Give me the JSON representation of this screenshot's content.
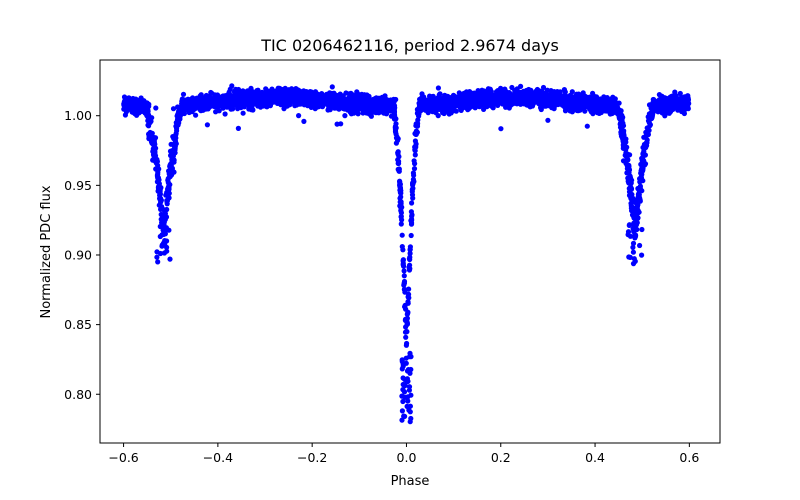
{
  "chart_data": {
    "type": "scatter",
    "title": "TIC 0206462116, period 2.9674 days",
    "xlabel": "Phase",
    "ylabel": "Normalized PDC flux",
    "xlim": [
      -0.65,
      0.665
    ],
    "ylim": [
      0.765,
      1.04
    ],
    "xticks": [
      -0.6,
      -0.4,
      -0.2,
      0.0,
      0.2,
      0.4,
      0.6
    ],
    "xtick_labels": [
      "−0.6",
      "−0.4",
      "−0.2",
      "0.0",
      "0.2",
      "0.4",
      "0.6"
    ],
    "yticks": [
      0.8,
      0.85,
      0.9,
      0.95,
      1.0
    ],
    "ytick_labels": [
      "0.80",
      "0.85",
      "0.90",
      "0.95",
      "1.00"
    ],
    "grid": false,
    "legend": "none",
    "marker_color": "#0000ff",
    "phase_range": [
      -0.6,
      0.6
    ],
    "baseline_flux": 1.008,
    "primary_eclipse": {
      "phase": 0.0,
      "min_flux": 0.78,
      "typical_depth_flux": 0.835
    },
    "secondary_eclipses": [
      {
        "phase": -0.515,
        "min_flux": 0.892,
        "typical_depth_flux": 0.92
      },
      {
        "phase": 0.485,
        "min_flux": 0.892,
        "typical_depth_flux": 0.92
      }
    ],
    "series": [
      {
        "x": [
          -0.6,
          -0.58,
          -0.56,
          -0.54,
          -0.53,
          -0.525,
          -0.52,
          -0.515,
          -0.51,
          -0.505,
          -0.5,
          -0.495,
          -0.49,
          -0.48,
          -0.46,
          -0.4,
          -0.3,
          -0.2,
          -0.1,
          -0.05,
          -0.03,
          -0.02,
          -0.015,
          -0.01,
          -0.005,
          0.0,
          0.005,
          0.01,
          0.015,
          0.02,
          0.03,
          0.05,
          0.1,
          0.2,
          0.3,
          0.4,
          0.44,
          0.46,
          0.47,
          0.475,
          0.48,
          0.485,
          0.49,
          0.495,
          0.5,
          0.505,
          0.51,
          0.52,
          0.54,
          0.56,
          0.58,
          0.6
        ],
        "y": [
          1.008,
          1.008,
          1.007,
          0.99,
          0.965,
          0.94,
          0.925,
          0.92,
          0.925,
          0.945,
          0.97,
          0.99,
          1.003,
          1.006,
          1.007,
          1.009,
          1.012,
          1.014,
          1.01,
          1.006,
          0.98,
          0.93,
          0.88,
          0.845,
          0.835,
          0.84,
          0.86,
          0.9,
          0.95,
          0.99,
          1.004,
          1.008,
          1.01,
          1.015,
          1.012,
          1.008,
          1.006,
          1.004,
          0.99,
          0.965,
          0.935,
          0.92,
          0.93,
          0.955,
          0.985,
          1.002,
          1.006,
          1.007,
          1.008,
          1.008,
          1.008,
          1.008
        ]
      }
    ]
  }
}
